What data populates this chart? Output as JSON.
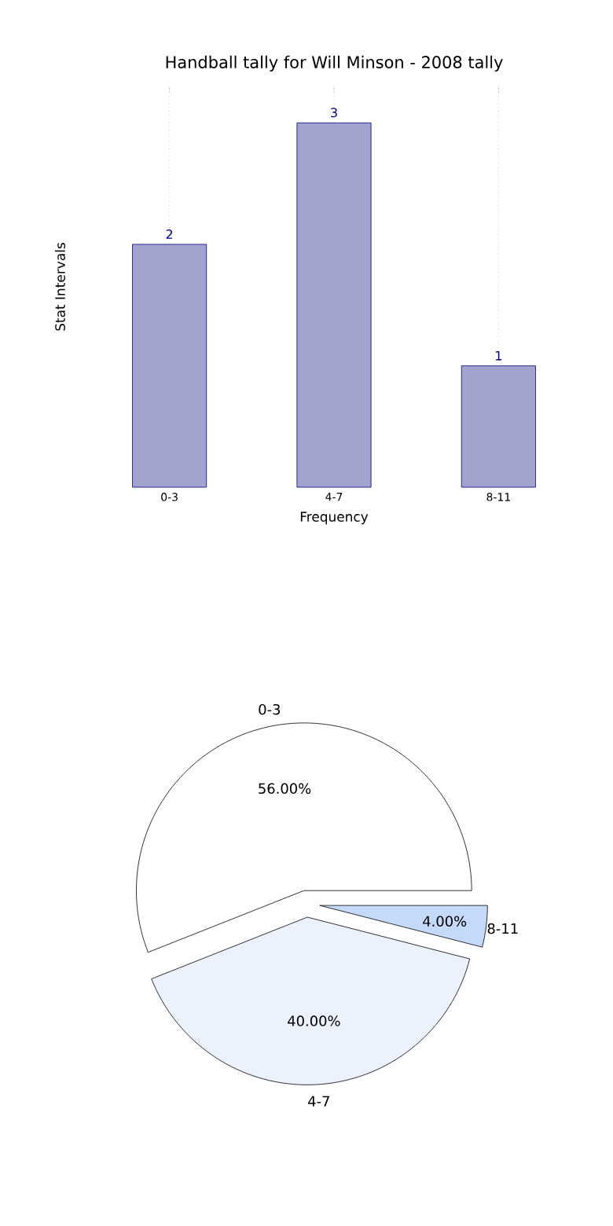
{
  "chart_data": [
    {
      "type": "bar",
      "title": "Handball tally for Will Minson - 2008 tally",
      "xlabel": "Frequency",
      "ylabel": "Stat Intervals",
      "categories": [
        "0-3",
        "4-7",
        "8-11"
      ],
      "values": [
        2,
        3,
        1
      ],
      "color": "#a3a3d0",
      "data_labels": true,
      "ylim": [
        0,
        3.3
      ],
      "grid": "x",
      "tick_labels": "x"
    },
    {
      "type": "pie",
      "categories": [
        "0-3",
        "4-7",
        "8-11"
      ],
      "values": [
        56,
        40,
        4
      ],
      "colors": [
        "#ffffff",
        "#ebf1fd",
        "#c5d9fb"
      ],
      "value_labels": [
        "56.00%",
        "40.00%",
        "4.00%"
      ]
    }
  ]
}
